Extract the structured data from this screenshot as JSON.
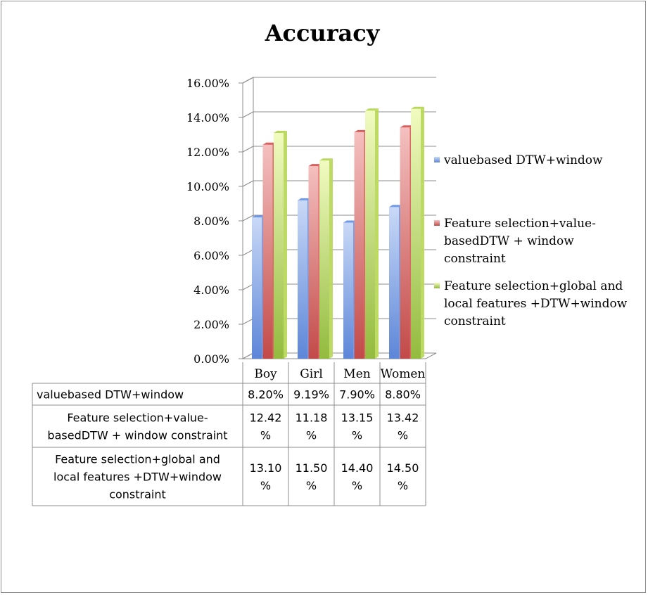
{
  "chart_data": {
    "type": "bar",
    "title": "Accuracy",
    "categories": [
      "Boy",
      "Girl",
      "Men",
      "Women"
    ],
    "y_ticks": [
      "0.00%",
      "2.00%",
      "4.00%",
      "6.00%",
      "8.00%",
      "10.00%",
      "12.00%",
      "14.00%",
      "16.00%"
    ],
    "ylim": [
      0,
      16
    ],
    "series": [
      {
        "name": "valuebased DTW+window",
        "legend_lines": [
          "valuebased DTW+window"
        ],
        "table_label_lines": [
          "valuebased DTW+window"
        ],
        "values": [
          8.2,
          9.19,
          7.9,
          8.8
        ],
        "table_lines": [
          [
            "8.20%"
          ],
          [
            "9.19%"
          ],
          [
            "7.90%"
          ],
          [
            "8.80%"
          ]
        ],
        "color": "#6f98e6"
      },
      {
        "name": "Feature selection+value-basedDTW + window constraint",
        "legend_lines": [
          "Feature selection+value-",
          "basedDTW + window",
          "constraint"
        ],
        "table_label_lines": [
          "Feature selection+value-",
          "basedDTW + window constraint"
        ],
        "values": [
          12.42,
          11.18,
          13.15,
          13.42
        ],
        "table_lines": [
          [
            "12.42",
            "%"
          ],
          [
            "11.18",
            "%"
          ],
          [
            "13.15",
            "%"
          ],
          [
            "13.42",
            "%"
          ]
        ],
        "color": "#d9605e"
      },
      {
        "name": "Feature selection+global and local features +DTW+window constraint",
        "legend_lines": [
          "Feature selection+global and",
          "local features +DTW+window",
          "constraint"
        ],
        "table_label_lines": [
          "Feature selection+global and",
          "local features +DTW+window",
          "constraint"
        ],
        "values": [
          13.1,
          11.5,
          14.4,
          14.5
        ],
        "table_lines": [
          [
            "13.10",
            "%"
          ],
          [
            "11.50",
            "%"
          ],
          [
            "14.40",
            "%"
          ],
          [
            "14.50",
            "%"
          ]
        ],
        "color": "#b8d85c"
      }
    ],
    "grid": true,
    "legend_position": "right"
  }
}
